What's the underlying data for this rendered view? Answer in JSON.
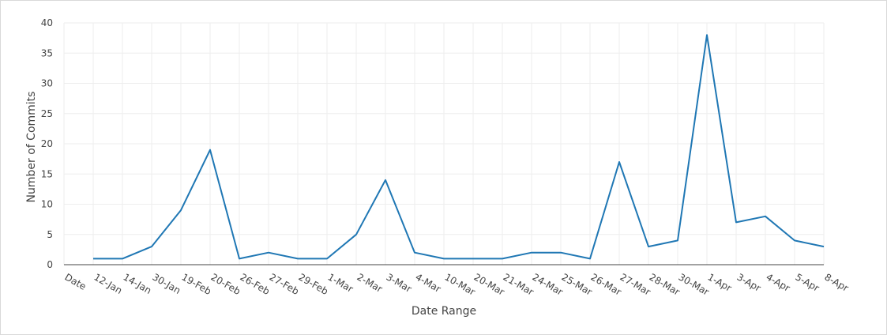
{
  "chart_data": {
    "type": "line",
    "title": "",
    "xlabel": "Date Range",
    "ylabel": "Number of Commits",
    "ylim": [
      0,
      40
    ],
    "yticks": [
      0,
      5,
      10,
      15,
      20,
      25,
      30,
      35,
      40
    ],
    "grid": true,
    "legend": "none",
    "line_color": "#1f77b4",
    "categories": [
      "Date",
      "12-Jan",
      "14-Jan",
      "30-Jan",
      "19-Feb",
      "20-Feb",
      "26-Feb",
      "27-Feb",
      "29-Feb",
      "1-Mar",
      "2-Mar",
      "3-Mar",
      "4-Mar",
      "10-Mar",
      "20-Mar",
      "21-Mar",
      "24-Mar",
      "25-Mar",
      "26-Mar",
      "27-Mar",
      "28-Mar",
      "30-Mar",
      "1-Apr",
      "3-Apr",
      "4-Apr",
      "5-Apr",
      "8-Apr"
    ],
    "series": [
      {
        "values": [
          null,
          1,
          1,
          3,
          9,
          19,
          1,
          2,
          1,
          1,
          5,
          14,
          2,
          1,
          1,
          1,
          2,
          2,
          1,
          17,
          3,
          4,
          38,
          7,
          8,
          4,
          3
        ]
      }
    ]
  }
}
